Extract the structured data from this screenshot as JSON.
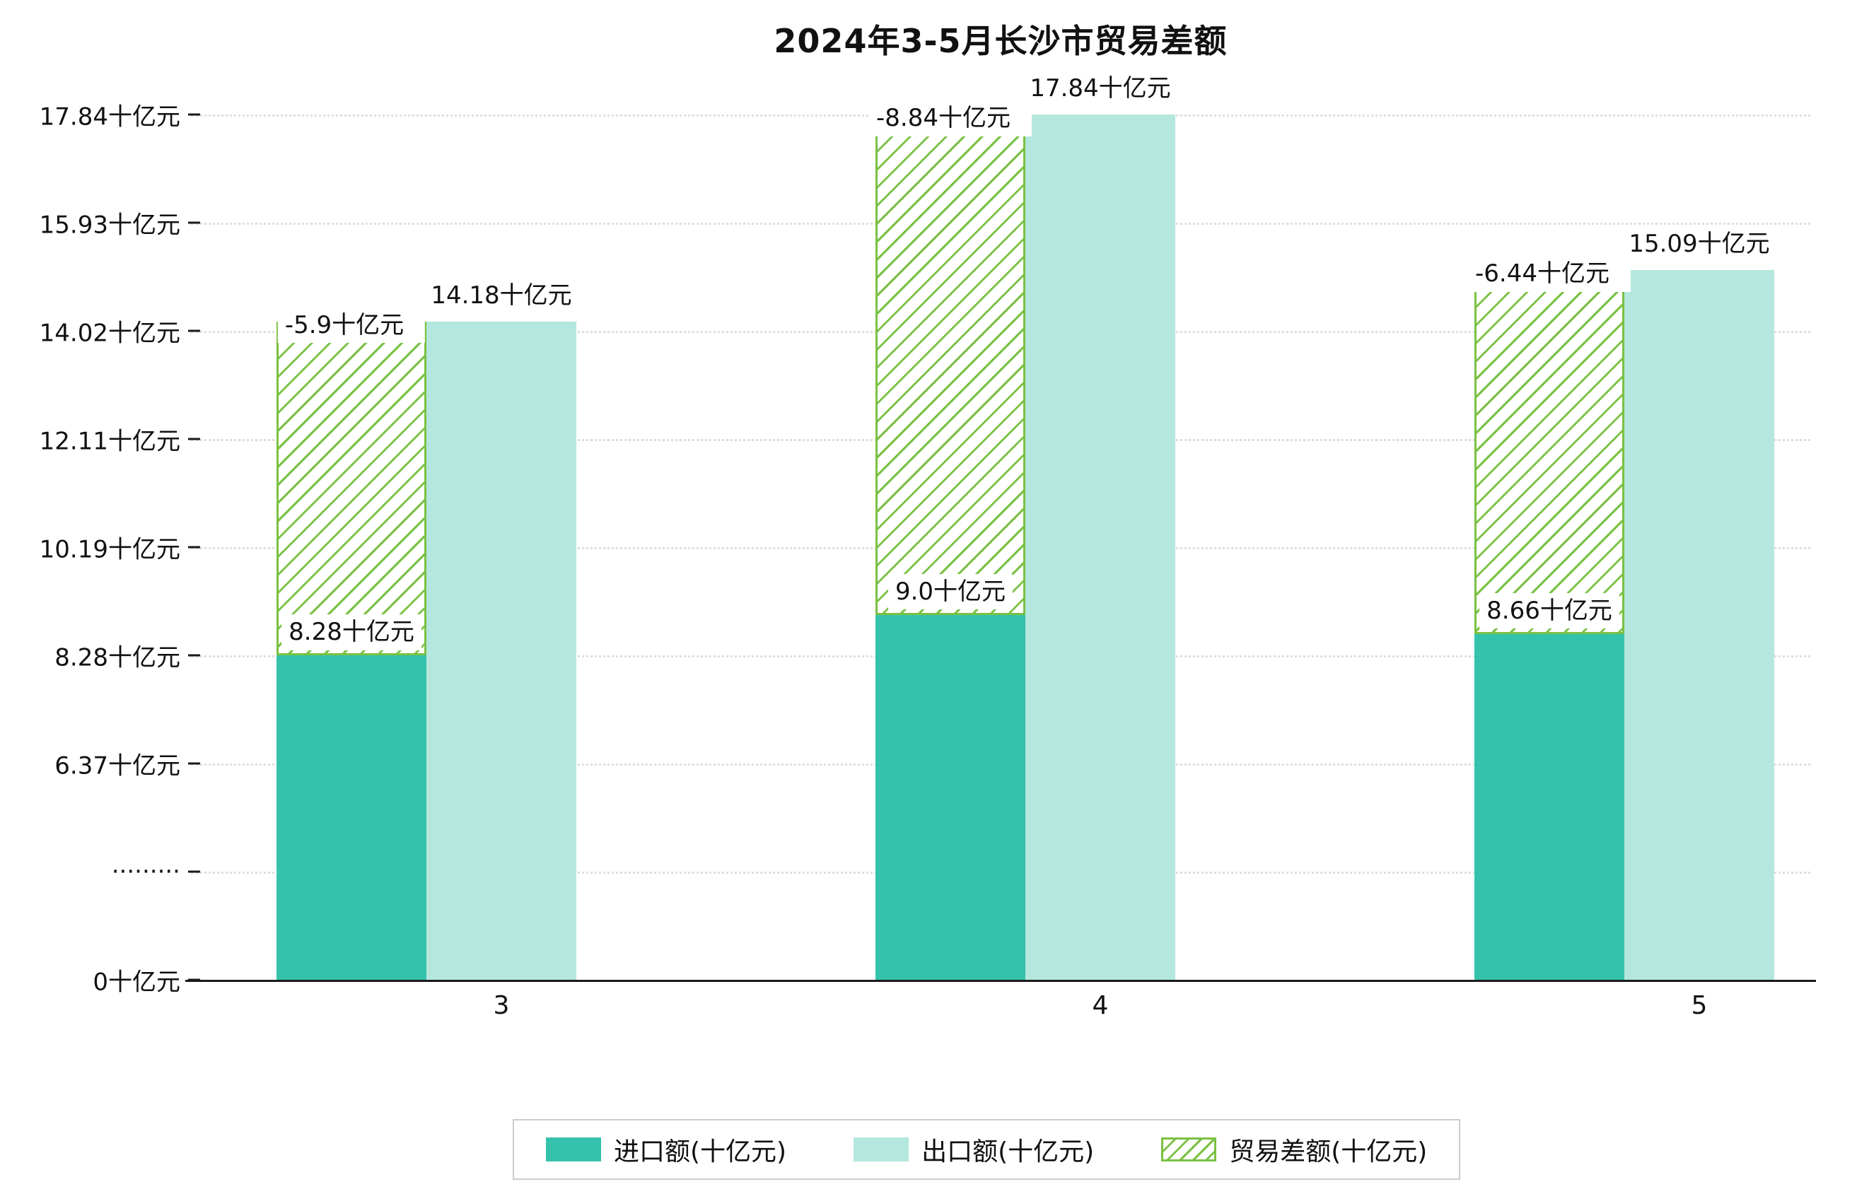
{
  "title": "2024年3-5月长沙市贸易差额",
  "colors": {
    "import_bar": "#35c2ac",
    "export_bar": "#b4e7dd",
    "balance": "#7ac143",
    "grid": "#dedede",
    "axis": "#1a1a1a",
    "label_bg": "#ffffff",
    "legend_border": "#cccccc"
  },
  "legend": {
    "items": [
      {
        "key": "import_bar",
        "label": "进口额(十亿元)"
      },
      {
        "key": "export_bar",
        "label": "出口额(十亿元)"
      },
      {
        "key": "balance",
        "label": "贸易差额(十亿元)"
      }
    ]
  },
  "chart_data": {
    "type": "bar",
    "title": "2024年3-5月长沙市贸易差额",
    "categories": [
      "3",
      "4",
      "5"
    ],
    "series": [
      {
        "name": "进口额(十亿元)",
        "role": "import",
        "values": [
          8.28,
          9.0,
          8.66
        ],
        "labels": [
          "8.28十亿元",
          "9.0十亿元",
          "8.66十亿元"
        ]
      },
      {
        "name": "出口额(十亿元)",
        "role": "export",
        "values": [
          14.18,
          17.84,
          15.09
        ],
        "labels": [
          "14.18十亿元",
          "17.84十亿元",
          "15.09十亿元"
        ]
      },
      {
        "name": "贸易差额(十亿元)",
        "role": "trade-balance",
        "values": [
          -5.9,
          -8.84,
          -6.44
        ],
        "labels": [
          "-5.9十亿元",
          "-8.84十亿元",
          "-6.44十亿元"
        ],
        "note": "hatched bar drawn from import top to export top (magnitude of deficit)"
      }
    ],
    "y_ticks": [
      "0十亿元",
      "·········",
      "6.37十亿元",
      "8.28十亿元",
      "10.19十亿元",
      "12.11十亿元",
      "14.02十亿元",
      "15.93十亿元",
      "17.84十亿元"
    ],
    "y_tick_values": [
      0,
      null,
      6.37,
      8.28,
      10.19,
      12.11,
      14.02,
      15.93,
      17.84
    ],
    "axis_break": true,
    "y_unit": "十亿元",
    "xlabel": "",
    "ylabel": "",
    "ylim": [
      0,
      17.84
    ],
    "grid": "dotted-horizontal",
    "legend_position": "bottom"
  }
}
